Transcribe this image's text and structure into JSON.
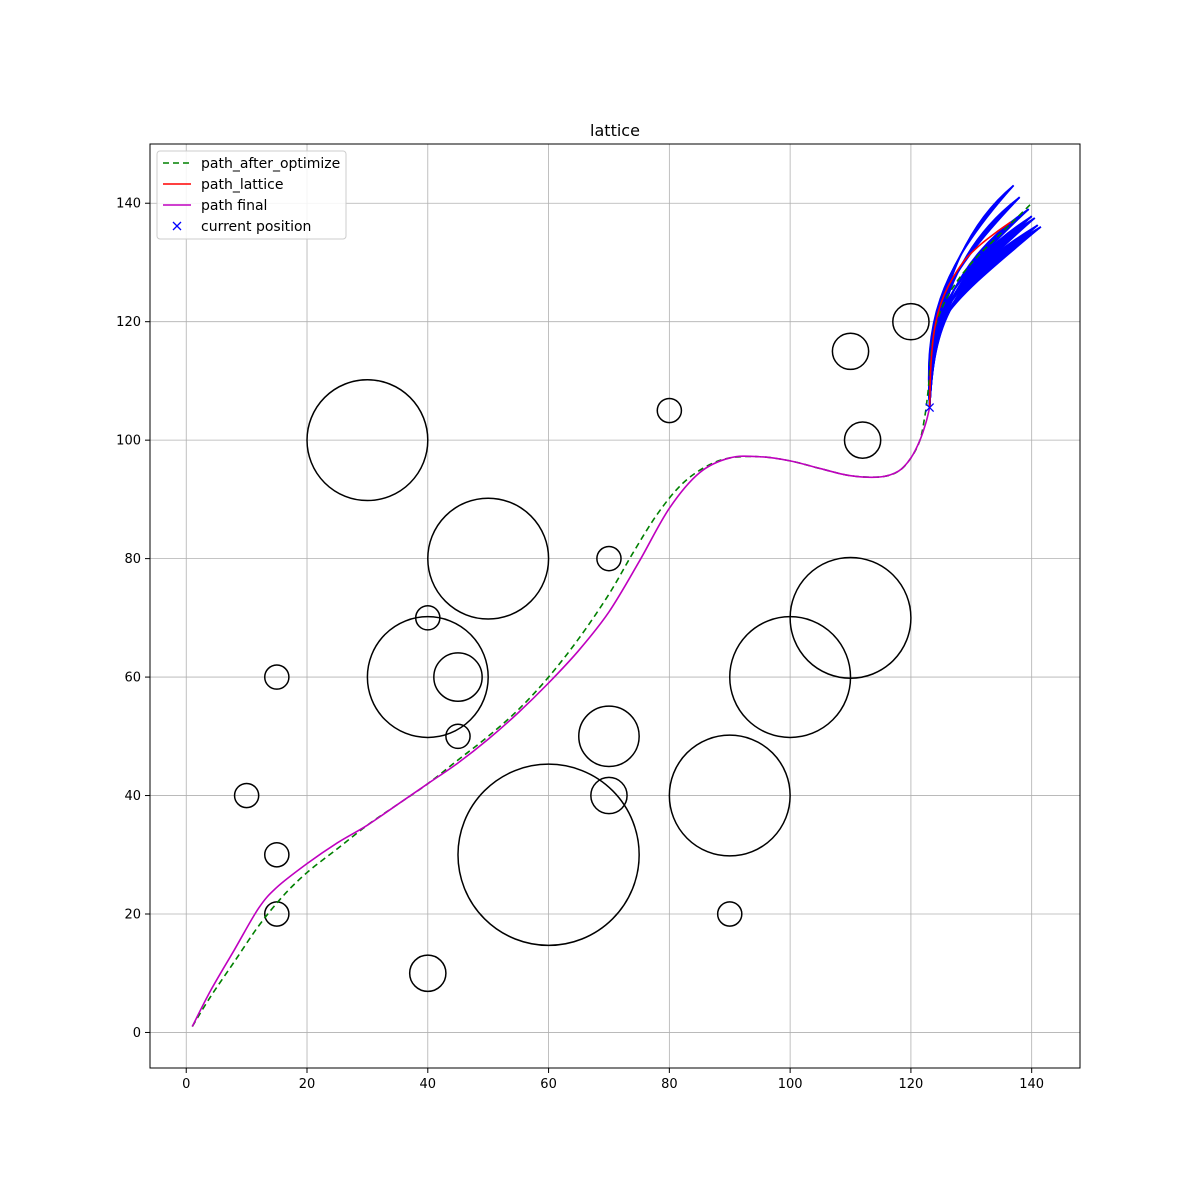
{
  "chart_data": {
    "type": "line",
    "title": "lattice",
    "xlabel": "",
    "ylabel": "",
    "xlim": [
      -6,
      148
    ],
    "ylim": [
      -6,
      150
    ],
    "xticks": [
      0,
      20,
      40,
      60,
      80,
      100,
      120,
      140
    ],
    "yticks": [
      0,
      20,
      40,
      60,
      80,
      100,
      120,
      140
    ],
    "grid": true,
    "legend_position": "top-left",
    "colors": {
      "path_after_optimize": "#008000",
      "path_lattice": "#ff0000",
      "path_final": "#bf00bf",
      "current_position": "#0000ff",
      "candidates": "#0000ff",
      "obstacles": "#000000",
      "grid": "#b0b0b0"
    },
    "legend": [
      {
        "key": "path_after_optimize",
        "label": "path_after_optimize",
        "style": "dashed"
      },
      {
        "key": "path_lattice",
        "label": "path_lattice",
        "style": "solid"
      },
      {
        "key": "path_final",
        "label": "path final",
        "style": "solid"
      },
      {
        "key": "current_position",
        "label": "current position",
        "style": "marker-x"
      }
    ],
    "obstacles": [
      {
        "x": 30,
        "y": 100,
        "r": 10
      },
      {
        "x": 50,
        "y": 80,
        "r": 10
      },
      {
        "x": 40,
        "y": 60,
        "r": 10
      },
      {
        "x": 60,
        "y": 30,
        "r": 15
      },
      {
        "x": 90,
        "y": 40,
        "r": 10
      },
      {
        "x": 100,
        "y": 60,
        "r": 10
      },
      {
        "x": 110,
        "y": 70,
        "r": 10
      },
      {
        "x": 70,
        "y": 50,
        "r": 5
      },
      {
        "x": 45,
        "y": 60,
        "r": 4
      },
      {
        "x": 15,
        "y": 60,
        "r": 2
      },
      {
        "x": 10,
        "y": 40,
        "r": 2
      },
      {
        "x": 15,
        "y": 30,
        "r": 2
      },
      {
        "x": 15,
        "y": 20,
        "r": 2
      },
      {
        "x": 40,
        "y": 10,
        "r": 3
      },
      {
        "x": 40,
        "y": 70,
        "r": 2
      },
      {
        "x": 45,
        "y": 50,
        "r": 2
      },
      {
        "x": 70,
        "y": 80,
        "r": 2
      },
      {
        "x": 70,
        "y": 40,
        "r": 3
      },
      {
        "x": 80,
        "y": 105,
        "r": 2
      },
      {
        "x": 90,
        "y": 20,
        "r": 2
      },
      {
        "x": 110,
        "y": 115,
        "r": 3
      },
      {
        "x": 112,
        "y": 100,
        "r": 3
      },
      {
        "x": 120,
        "y": 120,
        "r": 3
      }
    ],
    "series": [
      {
        "name": "path_after_optimize",
        "x": [
          1,
          4,
          8,
          12,
          16,
          20,
          25,
          30,
          35,
          40,
          45,
          50,
          55,
          60,
          65,
          70,
          74,
          78,
          82,
          86,
          90,
          95,
          100,
          105,
          110,
          115,
          118,
          120,
          121.5,
          122.3,
          122.7,
          123,
          123.2,
          123.5,
          124,
          125,
          126.5,
          128.5,
          131,
          134,
          137,
          140
        ],
        "y": [
          1,
          6,
          12,
          18,
          23,
          27,
          31,
          35,
          38.5,
          42,
          46,
          50,
          54.5,
          60,
          66.5,
          74,
          81,
          87.5,
          92.5,
          95.5,
          97,
          97.2,
          96.5,
          95.2,
          94,
          93.8,
          94.8,
          97,
          100,
          104,
          107,
          110,
          113,
          116,
          119,
          122,
          125,
          128,
          131,
          134,
          137,
          140
        ]
      },
      {
        "name": "path_lattice",
        "x": [
          123.1,
          123.2,
          123.4,
          123.8,
          124.5,
          125.5,
          127,
          129,
          131.5,
          134,
          136.5
        ],
        "y": [
          105.5,
          110,
          114,
          118,
          121.5,
          124.5,
          127.5,
          130.5,
          133,
          135,
          136.8
        ]
      },
      {
        "name": "path final",
        "x": [
          1,
          4,
          8,
          12,
          15,
          20,
          25,
          30,
          35,
          40,
          45,
          50,
          55,
          60,
          65,
          70,
          75,
          80,
          85,
          90,
          95,
          100,
          105,
          110,
          115,
          118,
          120,
          121.5,
          122.5,
          123.1
        ],
        "y": [
          1,
          7,
          14,
          21,
          24.5,
          28.5,
          32,
          35,
          38.5,
          42,
          45.5,
          49.5,
          54,
          59,
          64.5,
          71,
          79.5,
          88.5,
          94.5,
          97,
          97.2,
          96.5,
          95.2,
          94,
          93.8,
          94.8,
          97,
          100,
          103,
          105.5
        ]
      }
    ],
    "current_position": {
      "x": 123.1,
      "y": 105.5
    },
    "candidate_paths": {
      "start": {
        "x": 123.1,
        "y": 105.5
      },
      "end_points": [
        {
          "x": 137,
          "y": 143
        },
        {
          "x": 138,
          "y": 141
        },
        {
          "x": 139.5,
          "y": 139
        },
        {
          "x": 140,
          "y": 137.8
        },
        {
          "x": 140.5,
          "y": 137.5
        },
        {
          "x": 141,
          "y": 136.3
        },
        {
          "x": 141.5,
          "y": 136
        }
      ],
      "lateral_offsets": [
        -3,
        -2,
        -1,
        0,
        1,
        2,
        3
      ]
    }
  }
}
